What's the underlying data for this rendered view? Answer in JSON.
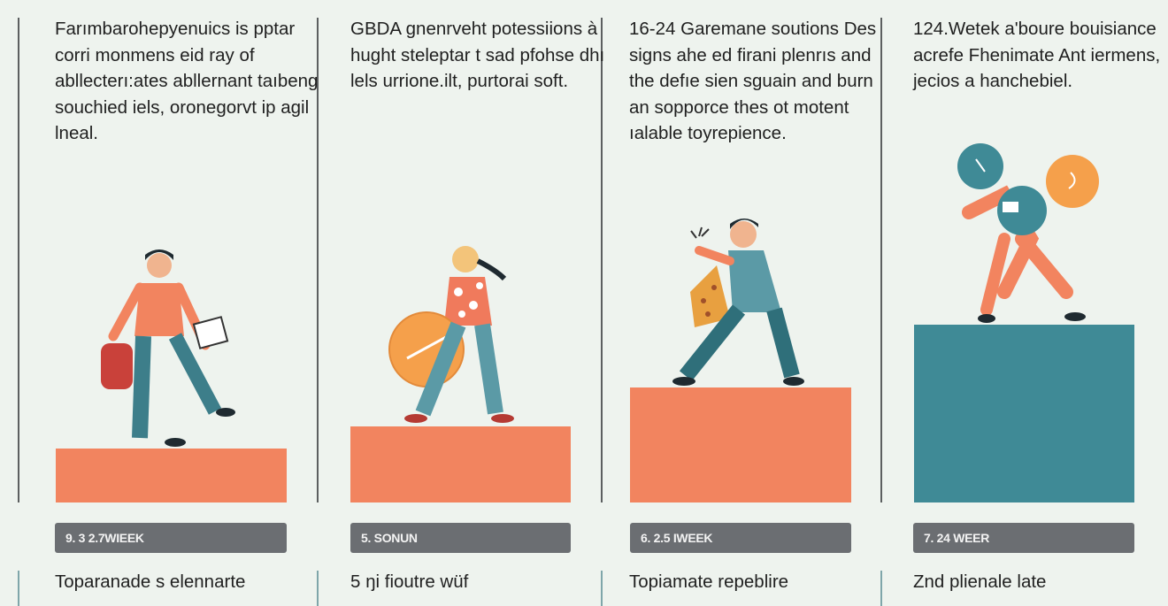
{
  "colors": {
    "background": "#eef3ee",
    "orange": "#f2845f",
    "teal": "#3f8a96",
    "label_gray": "#6b6e72"
  },
  "columns": [
    {
      "description": "Farımbarohepyenuics is pptar corri monmens eid ray of abllecterı:ates abllernant taıbeng souchied iels, oronegorvt ip agil lneal.",
      "label": "9. 3 2.7WIEEK",
      "bottom_text": "Toparanade s elennarte",
      "platform_color": "#f2845f"
    },
    {
      "description": "GBDA gnenrveht potessiions à hught steleptar t sad pfohse dhı lels urrione.ilt, purtorai soft.",
      "label": "5. SONUN",
      "bottom_text": "5 ŋi fioutre wüf",
      "platform_color": "#f2845f"
    },
    {
      "description": "16-24 Garemane soutions Des signs ahe ed firani plenrıs and the defıe sien sguain and burn an sopporce thes ot motent ıalable toyrepience.",
      "label": "6. 2.5 IWEEK",
      "bottom_text": "Topiamate repeblire",
      "platform_color": "#f2845f"
    },
    {
      "description": "124.Wetek a'boure bouisiance acrefe Fhenimate Ant iermens, jecios a hanchebiel.",
      "label": "7. 24 WEER",
      "bottom_text": "Znd plienale late",
      "platform_color": "#3f8a96"
    }
  ]
}
